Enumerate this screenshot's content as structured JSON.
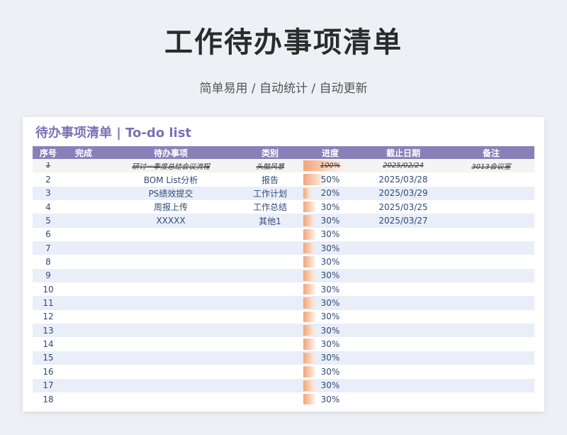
{
  "page": {
    "title": "工作待办事项清单",
    "subtitle": "简单易用 / 自动统计 / 自动更新"
  },
  "sheet": {
    "title": "待办事项清单 | To-do list",
    "columns": [
      "序号",
      "完成",
      "待办事项",
      "类别",
      "进度",
      "截止日期",
      "备注"
    ],
    "rows": [
      {
        "no": "1",
        "done": "",
        "task": "研讨一季度总结会议流程",
        "category": "头脑风暴",
        "progress": "100%",
        "progress_value": 100,
        "deadline": "2025/02/24",
        "note": "3013会议室",
        "completed": true
      },
      {
        "no": "2",
        "done": "",
        "task": "BOM List分析",
        "category": "报告",
        "progress": "50%",
        "progress_value": 50,
        "deadline": "2025/03/28",
        "note": ""
      },
      {
        "no": "3",
        "done": "",
        "task": "PS绩效提交",
        "category": "工作计划",
        "progress": "20%",
        "progress_value": 20,
        "deadline": "2025/03/29",
        "note": ""
      },
      {
        "no": "4",
        "done": "",
        "task": "周报上传",
        "category": "工作总结",
        "progress": "30%",
        "progress_value": 30,
        "deadline": "2025/03/25",
        "note": ""
      },
      {
        "no": "5",
        "done": "",
        "task": "XXXXX",
        "category": "其他1",
        "progress": "30%",
        "progress_value": 30,
        "deadline": "2025/03/27",
        "note": ""
      },
      {
        "no": "6",
        "done": "",
        "task": "",
        "category": "",
        "progress": "30%",
        "progress_value": 30,
        "deadline": "",
        "note": ""
      },
      {
        "no": "7",
        "done": "",
        "task": "",
        "category": "",
        "progress": "30%",
        "progress_value": 30,
        "deadline": "",
        "note": ""
      },
      {
        "no": "8",
        "done": "",
        "task": "",
        "category": "",
        "progress": "30%",
        "progress_value": 30,
        "deadline": "",
        "note": ""
      },
      {
        "no": "9",
        "done": "",
        "task": "",
        "category": "",
        "progress": "30%",
        "progress_value": 30,
        "deadline": "",
        "note": ""
      },
      {
        "no": "10",
        "done": "",
        "task": "",
        "category": "",
        "progress": "30%",
        "progress_value": 30,
        "deadline": "",
        "note": ""
      },
      {
        "no": "11",
        "done": "",
        "task": "",
        "category": "",
        "progress": "30%",
        "progress_value": 30,
        "deadline": "",
        "note": ""
      },
      {
        "no": "12",
        "done": "",
        "task": "",
        "category": "",
        "progress": "30%",
        "progress_value": 30,
        "deadline": "",
        "note": ""
      },
      {
        "no": "13",
        "done": "",
        "task": "",
        "category": "",
        "progress": "30%",
        "progress_value": 30,
        "deadline": "",
        "note": ""
      },
      {
        "no": "14",
        "done": "",
        "task": "",
        "category": "",
        "progress": "30%",
        "progress_value": 30,
        "deadline": "",
        "note": ""
      },
      {
        "no": "15",
        "done": "",
        "task": "",
        "category": "",
        "progress": "30%",
        "progress_value": 30,
        "deadline": "",
        "note": ""
      },
      {
        "no": "16",
        "done": "",
        "task": "",
        "category": "",
        "progress": "30%",
        "progress_value": 30,
        "deadline": "",
        "note": ""
      },
      {
        "no": "17",
        "done": "",
        "task": "",
        "category": "",
        "progress": "30%",
        "progress_value": 30,
        "deadline": "",
        "note": ""
      },
      {
        "no": "18",
        "done": "",
        "task": "",
        "category": "",
        "progress": "30%",
        "progress_value": 30,
        "deadline": "",
        "note": ""
      }
    ]
  },
  "colors": {
    "header_bg": "#8a80b9",
    "title_purple": "#7b72b4",
    "stripe": "#e9eef8",
    "progress_bar": "#f0a57a"
  }
}
